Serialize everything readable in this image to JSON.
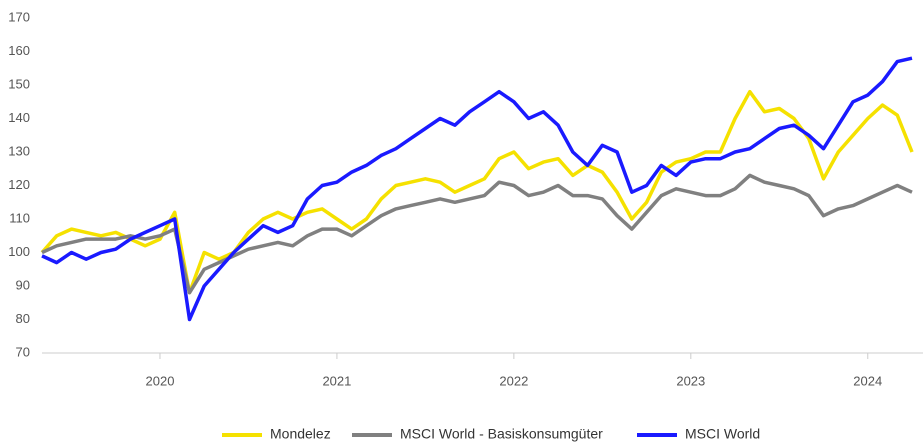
{
  "chart_data": {
    "type": "line",
    "categories": [
      null,
      null,
      null,
      null,
      null,
      null,
      null,
      null,
      "2020",
      null,
      null,
      null,
      null,
      null,
      null,
      null,
      null,
      null,
      null,
      null,
      "2021",
      null,
      null,
      null,
      null,
      null,
      null,
      null,
      null,
      null,
      null,
      null,
      "2022",
      null,
      null,
      null,
      null,
      null,
      null,
      null,
      null,
      null,
      null,
      null,
      "2023",
      null,
      null,
      null,
      null,
      null,
      null,
      null,
      null,
      null,
      null,
      null,
      "2024",
      null,
      null,
      null
    ],
    "series": [
      {
        "name": "Mondelez",
        "color": "#f5e100",
        "values": [
          100,
          105,
          107,
          106,
          105,
          106,
          104,
          102,
          104,
          112,
          88,
          100,
          98,
          100,
          106,
          110,
          112,
          110,
          112,
          113,
          110,
          107,
          110,
          116,
          120,
          121,
          122,
          121,
          118,
          120,
          122,
          128,
          130,
          125,
          127,
          128,
          123,
          126,
          124,
          118,
          110,
          115,
          124,
          127,
          128,
          130,
          130,
          140,
          148,
          142,
          143,
          140,
          134,
          122,
          130,
          135,
          140,
          144,
          141,
          130
        ]
      },
      {
        "name": "MSCI World - Basiskonsumgüter",
        "color": "#808080",
        "values": [
          100,
          102,
          103,
          104,
          104,
          104,
          105,
          104,
          105,
          107,
          88,
          95,
          97,
          99,
          101,
          102,
          103,
          102,
          105,
          107,
          107,
          105,
          108,
          111,
          113,
          114,
          115,
          116,
          115,
          116,
          117,
          121,
          120,
          117,
          118,
          120,
          117,
          117,
          116,
          111,
          107,
          112,
          117,
          119,
          118,
          117,
          117,
          119,
          123,
          121,
          120,
          119,
          117,
          111,
          113,
          114,
          116,
          118,
          120,
          118
        ]
      },
      {
        "name": "MSCI World",
        "color": "#1a1aff",
        "values": [
          99,
          97,
          100,
          98,
          100,
          101,
          104,
          106,
          108,
          110,
          80,
          90,
          95,
          100,
          104,
          108,
          106,
          108,
          116,
          120,
          121,
          124,
          126,
          129,
          131,
          134,
          137,
          140,
          138,
          142,
          145,
          148,
          145,
          140,
          142,
          138,
          130,
          126,
          132,
          130,
          118,
          120,
          126,
          123,
          127,
          128,
          128,
          130,
          131,
          134,
          137,
          138,
          135,
          131,
          138,
          145,
          147,
          151,
          157,
          158
        ]
      }
    ],
    "ylim": [
      70,
      170
    ],
    "yticks": [
      70,
      80,
      90,
      100,
      110,
      120,
      130,
      140,
      150,
      160,
      170
    ],
    "grid": false,
    "legend": "bottom"
  }
}
